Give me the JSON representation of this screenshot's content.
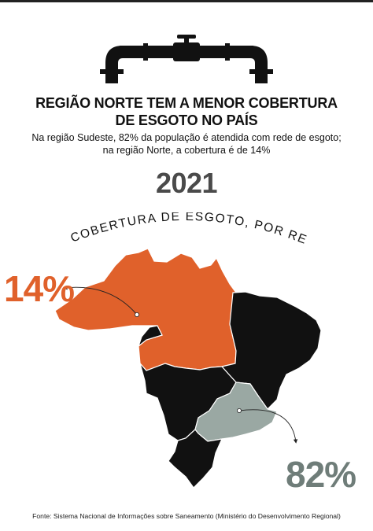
{
  "headline": {
    "title_line1": "REGIÃO NORTE TEM A MENOR COBERTURA",
    "title_line2": "DE ESGOTO NO PAÍS",
    "subtitle_line1": "Na região Sudeste, 82% da população é atendida com rede de esgoto;",
    "subtitle_line2": "na região Norte, a cobertura é de 14%"
  },
  "year": "2021",
  "map_caption": "% DE COBERTURA DE ESGOTO, POR REGIÃO",
  "regions": [
    {
      "name": "Norte",
      "coverage_label": "14%",
      "coverage": 14,
      "color": "#e0612b"
    },
    {
      "name": "Sudeste",
      "coverage_label": "82%",
      "coverage": 82,
      "color": "#9aa8a3"
    }
  ],
  "other_regions_color": "#111111",
  "label_colors": {
    "norte": "#e0612b",
    "sudeste": "#6f7d79"
  },
  "icons": [
    "pipe-icon"
  ],
  "source": "Fonte: Sistema Nacional de Informações sobre Saneamento (Ministério do Desenvolvimento Regional)"
}
